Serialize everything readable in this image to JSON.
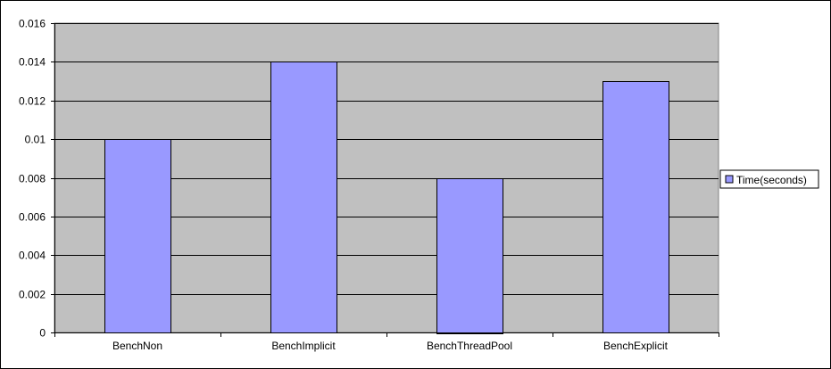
{
  "chart_data": {
    "type": "bar",
    "categories": [
      "BenchNon",
      "BenchImplicit",
      "BenchThreadPool",
      "BenchExplicit"
    ],
    "series": [
      {
        "name": "Time(seconds)",
        "values": [
          0.01,
          0.014,
          0.008,
          0.013
        ],
        "color": "#9999FF"
      }
    ],
    "y_ticks": [
      "0",
      "0.002",
      "0.004",
      "0.006",
      "0.008",
      "0.01",
      "0.012",
      "0.014",
      "0.016"
    ],
    "ylim": [
      0,
      0.016
    ],
    "grid": true,
    "legend_position": "right",
    "plot_background": "#C0C0C0"
  }
}
